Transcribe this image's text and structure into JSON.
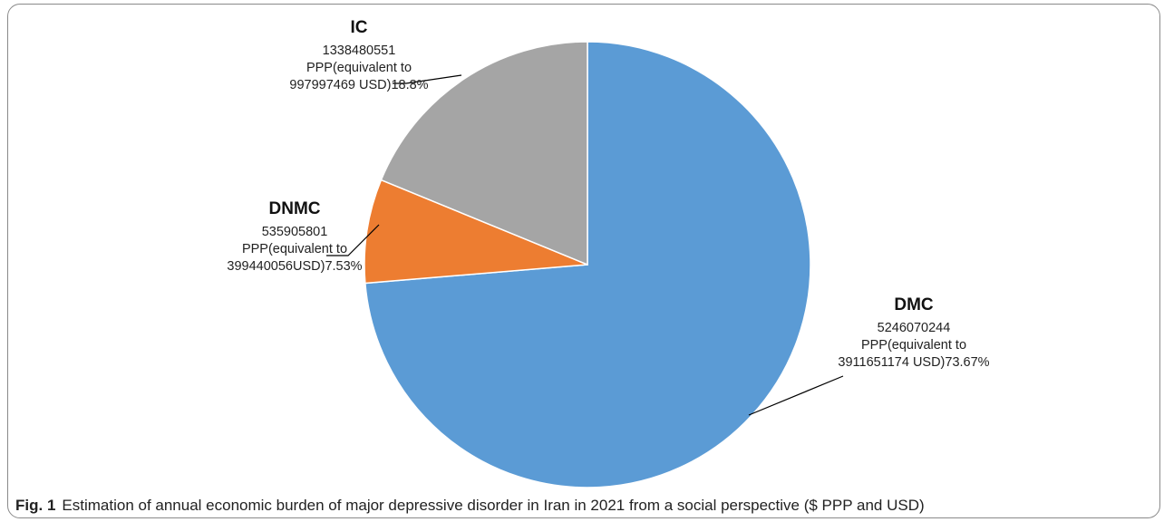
{
  "chart_data": {
    "type": "pie",
    "slices": [
      {
        "name": "DMC",
        "value": 73.67,
        "color": "#5b9bd5",
        "lines": [
          "5246070244",
          "PPP(equivalent to",
          "3911651174 USD)73.67%"
        ]
      },
      {
        "name": "DNMC",
        "value": 7.53,
        "color": "#ed7d31",
        "lines": [
          "535905801",
          "PPP(equivalent to",
          "399440056USD)7.53%"
        ]
      },
      {
        "name": "IC",
        "value": 18.8,
        "color": "#a5a5a5",
        "lines": [
          "1338480551",
          "PPP(equivalent to",
          "997997469 USD)18.8%"
        ]
      }
    ]
  },
  "caption": {
    "lead": "Fig. 1",
    "text": "Estimation of annual economic burden of major depressive disorder in Iran in 2021 from a social perspective ($ PPP and USD)"
  }
}
